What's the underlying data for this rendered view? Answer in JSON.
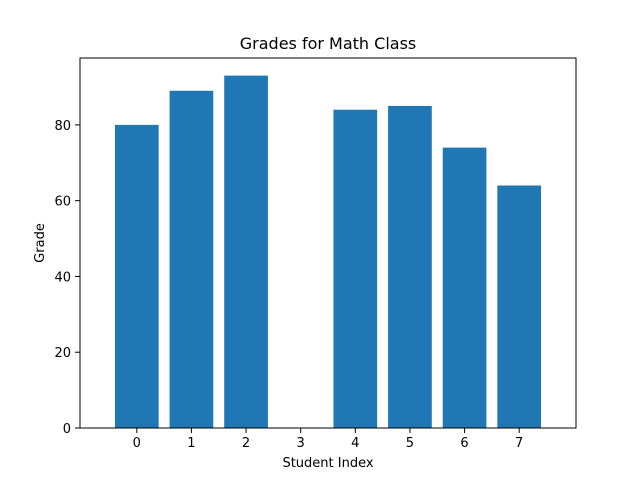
{
  "chart_data": {
    "type": "bar",
    "title": "Grades for Math Class",
    "xlabel": "Student Index",
    "ylabel": "Grade",
    "categories": [
      "0",
      "1",
      "2",
      "3",
      "4",
      "5",
      "6",
      "7"
    ],
    "values": [
      80,
      89,
      93,
      0,
      84,
      85,
      74,
      64
    ],
    "ylim": [
      0,
      97.65
    ],
    "yticks": [
      0,
      20,
      40,
      60,
      80
    ],
    "grid": false,
    "bar_color": "#1f77b4"
  }
}
